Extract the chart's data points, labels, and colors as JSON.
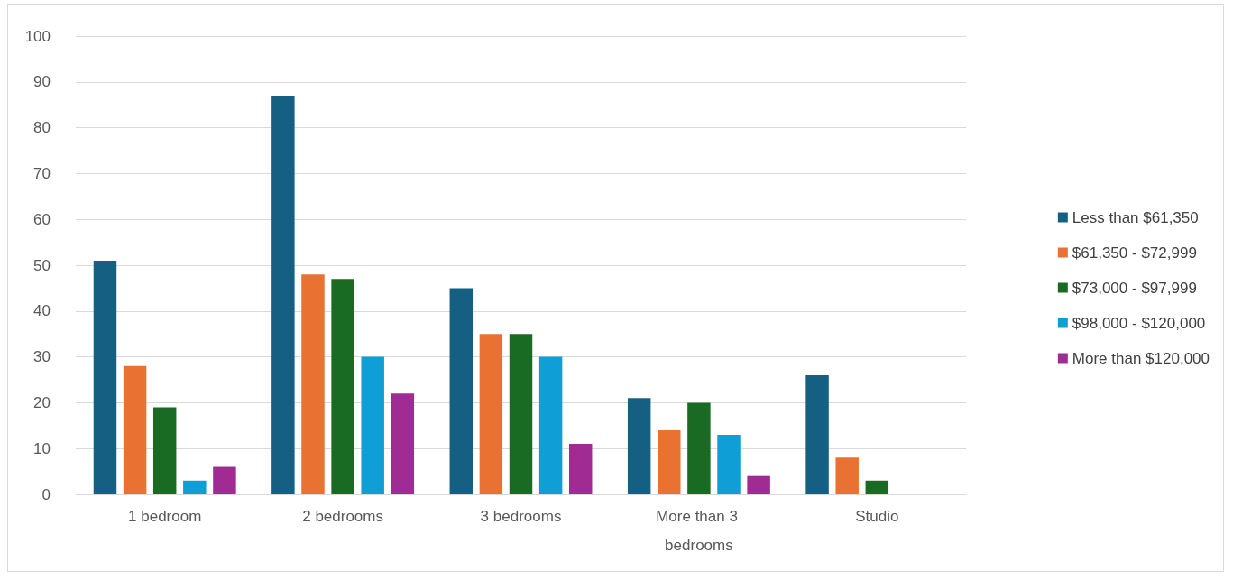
{
  "chart_data": {
    "type": "bar",
    "categories": [
      "1 bedroom",
      "2 bedrooms",
      "3 bedrooms",
      "More than 3 bedrooms",
      "Studio"
    ],
    "series": [
      {
        "name": "Less than $61,350",
        "color": "#156082",
        "values": [
          51,
          87,
          45,
          21,
          26
        ]
      },
      {
        "name": "$61,350 - $72,999",
        "color": "#e97132",
        "values": [
          28,
          48,
          35,
          14,
          8
        ]
      },
      {
        "name": "$73,000 - $97,999",
        "color": "#196b24",
        "values": [
          19,
          47,
          35,
          20,
          3
        ]
      },
      {
        "name": "$98,000 - $120,000",
        "color": "#0f9ed5",
        "values": [
          3,
          30,
          30,
          13,
          null
        ]
      },
      {
        "name": "More than $120,000",
        "color": "#a02b93",
        "values": [
          6,
          22,
          11,
          4,
          null
        ]
      }
    ],
    "ylim": [
      0,
      100
    ],
    "yticks": [
      0,
      10,
      20,
      30,
      40,
      50,
      60,
      70,
      80,
      90,
      100
    ],
    "grid": "y",
    "legend": "right"
  }
}
